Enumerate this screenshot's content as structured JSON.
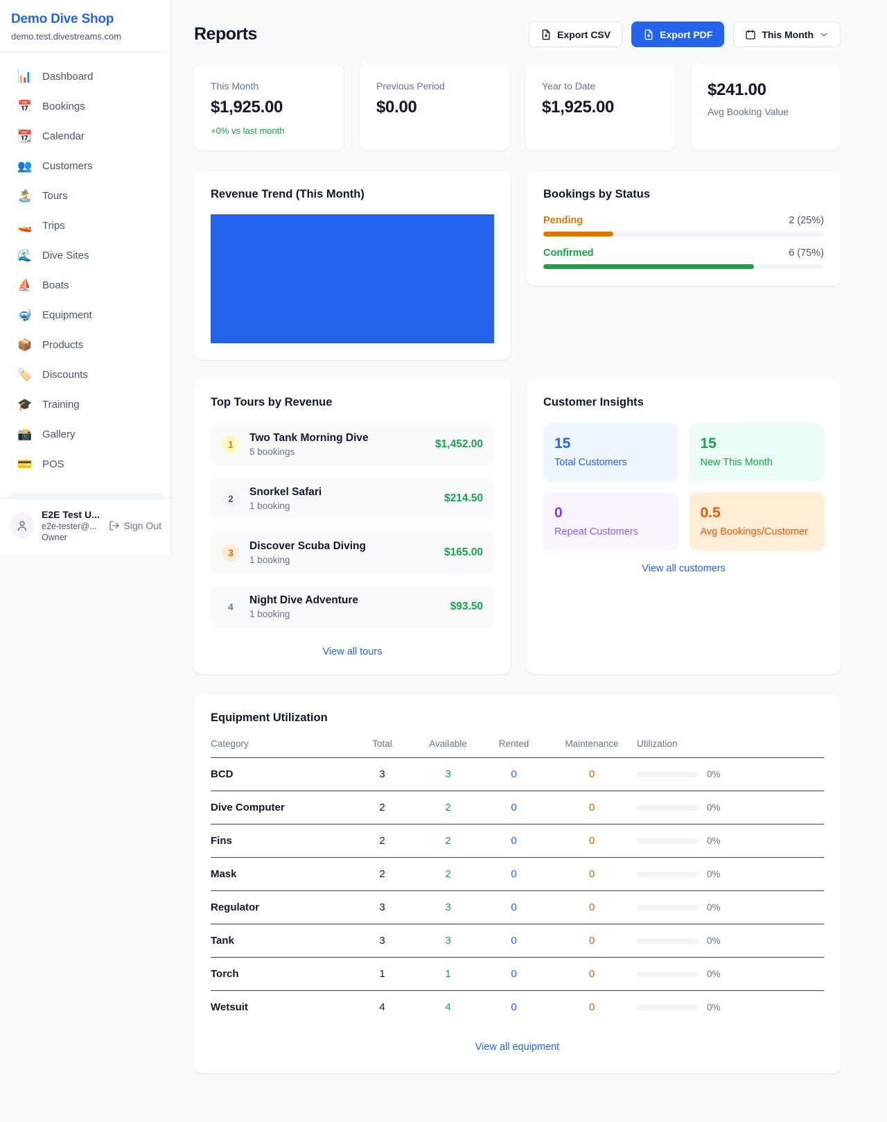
{
  "colors": {
    "accent": "#2563eb",
    "positive": "#16a34a",
    "pending": "#d97706",
    "maintenance": "#ea580c"
  },
  "sidebar": {
    "brand": {
      "name": "Demo Dive Shop",
      "domain": "demo.test.divestreams.com"
    },
    "nav": [
      {
        "label": "Dashboard",
        "icon": "📊"
      },
      {
        "label": "Bookings",
        "icon": "📅"
      },
      {
        "label": "Calendar",
        "icon": "📆"
      },
      {
        "label": "Customers",
        "icon": "👥"
      },
      {
        "label": "Tours",
        "icon": "🏝️"
      },
      {
        "label": "Trips",
        "icon": "🚤"
      },
      {
        "label": "Dive Sites",
        "icon": "🌊"
      },
      {
        "label": "Boats",
        "icon": "⛵"
      },
      {
        "label": "Equipment",
        "icon": "🤿"
      },
      {
        "label": "Products",
        "icon": "📦"
      },
      {
        "label": "Discounts",
        "icon": "🏷️"
      },
      {
        "label": "Training",
        "icon": "🎓"
      },
      {
        "label": "Gallery",
        "icon": "📸"
      },
      {
        "label": "POS",
        "icon": "💳"
      }
    ],
    "user": {
      "name": "E2E Test U...",
      "email": "e2e-tester@...",
      "role": "Owner",
      "sign_out": "Sign Out"
    }
  },
  "header": {
    "title": "Reports",
    "export_csv": "Export CSV",
    "export_pdf": "Export PDF",
    "period": "This Month"
  },
  "stats": [
    {
      "label": "This Month",
      "value": "$1,925.00",
      "delta": "+0% vs last month"
    },
    {
      "label": "Previous Period",
      "value": "$0.00"
    },
    {
      "label": "Year to Date",
      "value": "$1,925.00"
    },
    {
      "label": "Avg Booking Value",
      "value": "$241.00"
    }
  ],
  "revenue_trend": {
    "title": "Revenue Trend (This Month)",
    "bar_color": "#2563eb"
  },
  "chart_data": {
    "type": "bar",
    "title": "Revenue Trend (This Month)",
    "note": "single full-width solid bar, no axes or labels visible",
    "series": [
      {
        "name": "Revenue",
        "values": [
          1925.0
        ]
      }
    ]
  },
  "bookings_by_status": {
    "title": "Bookings by Status",
    "rows": [
      {
        "label": "Pending",
        "value": "2 (25%)",
        "pct": 25
      },
      {
        "label": "Confirmed",
        "value": "6 (75%)",
        "pct": 75
      }
    ]
  },
  "top_tours": {
    "title": "Top Tours by Revenue",
    "items": [
      {
        "rank": "1",
        "name": "Two Tank Morning Dive",
        "bookings": "5 bookings",
        "amount": "$1,452.00"
      },
      {
        "rank": "2",
        "name": "Snorkel Safari",
        "bookings": "1 booking",
        "amount": "$214.50"
      },
      {
        "rank": "3",
        "name": "Discover Scuba Diving",
        "bookings": "1 booking",
        "amount": "$165.00"
      },
      {
        "rank": "4",
        "name": "Night Dive Adventure",
        "bookings": "1 booking",
        "amount": "$93.50"
      }
    ],
    "view_all": "View all tours"
  },
  "customer_insights": {
    "title": "Customer Insights",
    "tiles": [
      {
        "value": "15",
        "label": "Total Customers"
      },
      {
        "value": "15",
        "label": "New This Month"
      },
      {
        "value": "0",
        "label": "Repeat Customers"
      },
      {
        "value": "0.5",
        "label": "Avg Bookings/Customer"
      }
    ],
    "view_all": "View all customers"
  },
  "equipment": {
    "title": "Equipment Utilization",
    "columns": [
      "Category",
      "Total",
      "Available",
      "Rented",
      "Maintenance",
      "Utilization"
    ],
    "rows": [
      {
        "category": "BCD",
        "total": "3",
        "available": "3",
        "rented": "0",
        "maintenance": "0",
        "utilization": "0%",
        "pct": 0
      },
      {
        "category": "Dive Computer",
        "total": "2",
        "available": "2",
        "rented": "0",
        "maintenance": "0",
        "utilization": "0%",
        "pct": 0
      },
      {
        "category": "Fins",
        "total": "2",
        "available": "2",
        "rented": "0",
        "maintenance": "0",
        "utilization": "0%",
        "pct": 0
      },
      {
        "category": "Mask",
        "total": "2",
        "available": "2",
        "rented": "0",
        "maintenance": "0",
        "utilization": "0%",
        "pct": 0
      },
      {
        "category": "Regulator",
        "total": "3",
        "available": "3",
        "rented": "0",
        "maintenance": "0",
        "utilization": "0%",
        "pct": 0
      },
      {
        "category": "Tank",
        "total": "3",
        "available": "3",
        "rented": "0",
        "maintenance": "0",
        "utilization": "0%",
        "pct": 0
      },
      {
        "category": "Torch",
        "total": "1",
        "available": "1",
        "rented": "0",
        "maintenance": "0",
        "utilization": "0%",
        "pct": 0
      },
      {
        "category": "Wetsuit",
        "total": "4",
        "available": "4",
        "rented": "0",
        "maintenance": "0",
        "utilization": "0%",
        "pct": 0
      }
    ],
    "view_all": "View all equipment"
  }
}
